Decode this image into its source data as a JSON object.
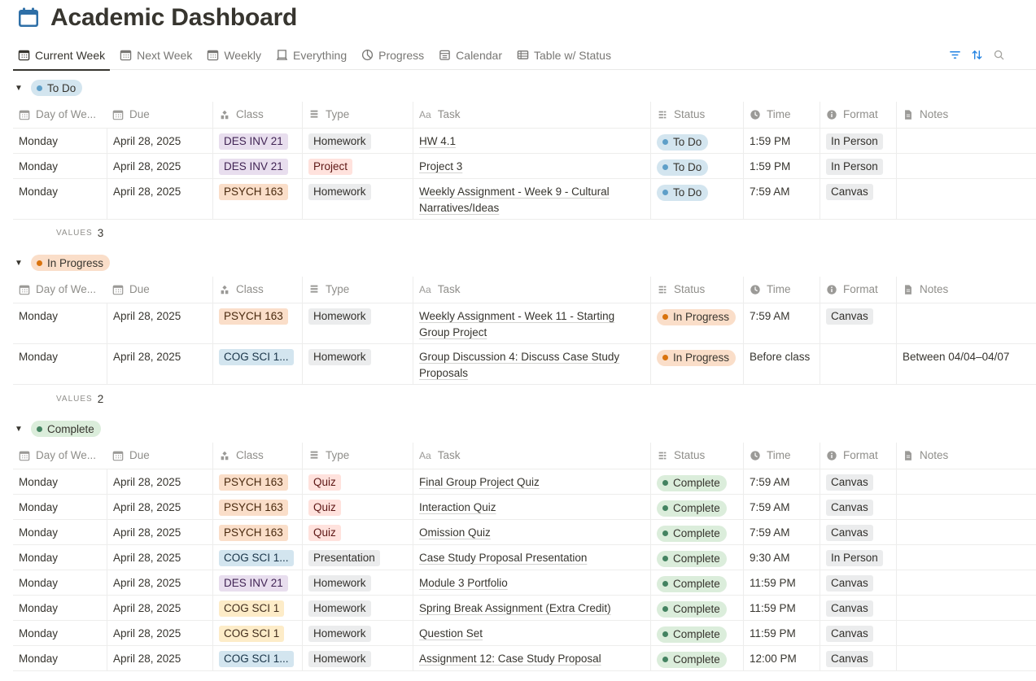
{
  "page": {
    "title": "Academic Dashboard",
    "icon": "calendar-icon"
  },
  "tabs": [
    {
      "label": "Current Week",
      "icon": "calendar-grid-icon",
      "active": true
    },
    {
      "label": "Next Week",
      "icon": "calendar-grid-icon",
      "active": false
    },
    {
      "label": "Weekly",
      "icon": "calendar-grid-icon",
      "active": false
    },
    {
      "label": "Everything",
      "icon": "board-icon",
      "active": false
    },
    {
      "label": "Progress",
      "icon": "pie-chart-icon",
      "active": false
    },
    {
      "label": "Calendar",
      "icon": "calendar-view-icon",
      "active": false
    },
    {
      "label": "Table w/ Status",
      "icon": "table-icon",
      "active": false
    }
  ],
  "toolbar": {
    "filter_icon": "filter-icon",
    "sort_icon": "sort-icon",
    "search_icon": "search-icon"
  },
  "columns": [
    "Day of We...",
    "Due",
    "Class",
    "Type",
    "Task",
    "Status",
    "Time",
    "Format",
    "Notes"
  ],
  "colors": {
    "todo": "#d3e5ef",
    "todo_dot": "#5e9fc8",
    "inprogress": "#fadec9",
    "inprogress_dot": "#d9730d",
    "complete": "#dbeddb",
    "complete_dot": "#448361"
  },
  "groups": [
    {
      "label": "To Do",
      "values_label": "VALUES",
      "count": "3",
      "rows": [
        {
          "day": "Monday",
          "due": "April 28, 2025",
          "class": "DES INV 21",
          "class_color": "purple",
          "type": "Homework",
          "type_color": "gray",
          "task": [
            "HW 4.1"
          ],
          "status": "To Do",
          "time": "1:59 PM",
          "format": "In Person",
          "notes": ""
        },
        {
          "day": "Monday",
          "due": "April 28, 2025",
          "class": "DES INV 21",
          "class_color": "purple",
          "type": "Project",
          "type_color": "red",
          "task": [
            "Project 3"
          ],
          "status": "To Do",
          "time": "1:59 PM",
          "format": "In Person",
          "notes": ""
        },
        {
          "day": "Monday",
          "due": "April 28, 2025",
          "class": "PSYCH 163",
          "class_color": "orange",
          "type": "Homework",
          "type_color": "gray",
          "task": [
            "Weekly Assignment - Week 9 - Cultural",
            "Narratives/Ideas"
          ],
          "status": "To Do",
          "time": "7:59 AM",
          "format": "Canvas",
          "notes": ""
        }
      ]
    },
    {
      "label": "In Progress",
      "values_label": "VALUES",
      "count": "2",
      "rows": [
        {
          "day": "Monday",
          "due": "April 28, 2025",
          "class": "PSYCH 163",
          "class_color": "orange",
          "type": "Homework",
          "type_color": "gray",
          "task": [
            "Weekly Assignment - Week 11 - Starting",
            "Group Project"
          ],
          "status": "In Progress",
          "time": "7:59 AM",
          "format": "Canvas",
          "notes": ""
        },
        {
          "day": "Monday",
          "due": "April 28, 2025",
          "class": "COG SCI 1...",
          "class_color": "blue",
          "type": "Homework",
          "type_color": "gray",
          "task": [
            "Group Discussion 4: Discuss Case Study",
            "Proposals"
          ],
          "status": "In Progress",
          "time": "Before class",
          "format": "",
          "notes": "Between 04/04–04/07"
        }
      ]
    },
    {
      "label": "Complete",
      "rows": [
        {
          "day": "Monday",
          "due": "April 28, 2025",
          "class": "PSYCH 163",
          "class_color": "orange",
          "type": "Quiz",
          "type_color": "red",
          "task": [
            "Final Group Project Quiz"
          ],
          "status": "Complete",
          "time": "7:59 AM",
          "format": "Canvas",
          "notes": ""
        },
        {
          "day": "Monday",
          "due": "April 28, 2025",
          "class": "PSYCH 163",
          "class_color": "orange",
          "type": "Quiz",
          "type_color": "red",
          "task": [
            "Interaction Quiz"
          ],
          "status": "Complete",
          "time": "7:59 AM",
          "format": "Canvas",
          "notes": ""
        },
        {
          "day": "Monday",
          "due": "April 28, 2025",
          "class": "PSYCH 163",
          "class_color": "orange",
          "type": "Quiz",
          "type_color": "red",
          "task": [
            "Omission Quiz"
          ],
          "status": "Complete",
          "time": "7:59 AM",
          "format": "Canvas",
          "notes": ""
        },
        {
          "day": "Monday",
          "due": "April 28, 2025",
          "class": "COG SCI 1...",
          "class_color": "blue",
          "type": "Presentation",
          "type_color": "gray",
          "task": [
            "Case Study Proposal Presentation"
          ],
          "status": "Complete",
          "time": "9:30 AM",
          "format": "In Person",
          "notes": ""
        },
        {
          "day": "Monday",
          "due": "April 28, 2025",
          "class": "DES INV 21",
          "class_color": "purple",
          "type": "Homework",
          "type_color": "gray",
          "task": [
            "Module 3 Portfolio"
          ],
          "status": "Complete",
          "time": "11:59 PM",
          "format": "Canvas",
          "notes": ""
        },
        {
          "day": "Monday",
          "due": "April 28, 2025",
          "class": "COG SCI 1",
          "class_color": "yellow",
          "type": "Homework",
          "type_color": "gray",
          "task": [
            "Spring Break Assignment (Extra Credit)"
          ],
          "status": "Complete",
          "time": "11:59 PM",
          "format": "Canvas",
          "notes": ""
        },
        {
          "day": "Monday",
          "due": "April 28, 2025",
          "class": "COG SCI 1",
          "class_color": "yellow",
          "type": "Homework",
          "type_color": "gray",
          "task": [
            "Question Set"
          ],
          "status": "Complete",
          "time": "11:59 PM",
          "format": "Canvas",
          "notes": ""
        },
        {
          "day": "Monday",
          "due": "April 28, 2025",
          "class": "COG SCI 1...",
          "class_color": "blue",
          "type": "Homework",
          "type_color": "gray",
          "task": [
            "Assignment 12: Case Study Proposal"
          ],
          "status": "Complete",
          "time": "12:00 PM",
          "format": "Canvas",
          "notes": ""
        }
      ]
    }
  ]
}
